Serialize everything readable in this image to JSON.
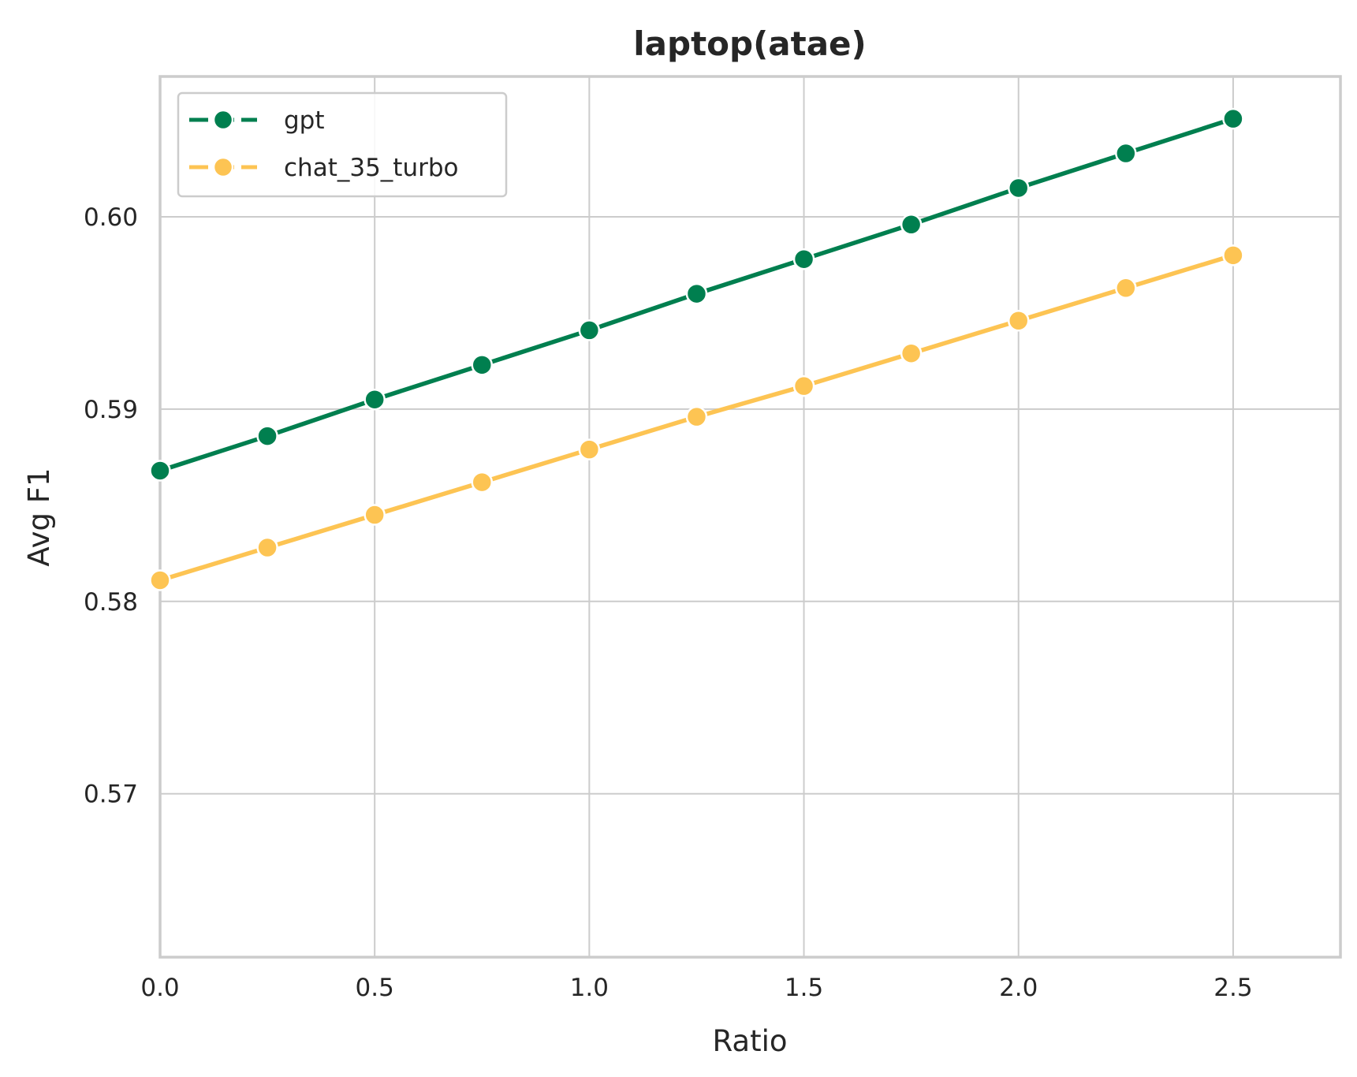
{
  "chart_data": {
    "type": "line",
    "title": "laptop(atae)",
    "xlabel": "Ratio",
    "ylabel": "Avg F1",
    "xlim": [
      0.0,
      2.75
    ],
    "ylim": [
      0.5615,
      0.6073
    ],
    "xticks": [
      0.0,
      0.5,
      1.0,
      1.5,
      2.0,
      2.5
    ],
    "xtick_labels": [
      "0.0",
      "0.5",
      "1.0",
      "1.5",
      "2.0",
      "2.5"
    ],
    "yticks": [
      0.57,
      0.58,
      0.59,
      0.6
    ],
    "ytick_labels": [
      "0.57",
      "0.58",
      "0.59",
      "0.60"
    ],
    "grid": true,
    "legend_position": "upper-left",
    "x": [
      0.0,
      0.25,
      0.5,
      0.75,
      1.0,
      1.25,
      1.5,
      1.75,
      2.0,
      2.25,
      2.5
    ],
    "series": [
      {
        "name": "gpt",
        "color": "#007f4f",
        "values": [
          0.5868,
          0.5886,
          0.5905,
          0.5923,
          0.5941,
          0.596,
          0.5978,
          0.5996,
          0.6015,
          0.6033,
          0.6051
        ]
      },
      {
        "name": "chat_35_turbo",
        "color": "#fdc453",
        "values": [
          0.5811,
          0.5828,
          0.5845,
          0.5862,
          0.5879,
          0.5896,
          0.5912,
          0.5929,
          0.5946,
          0.5963,
          0.598
        ]
      }
    ]
  }
}
